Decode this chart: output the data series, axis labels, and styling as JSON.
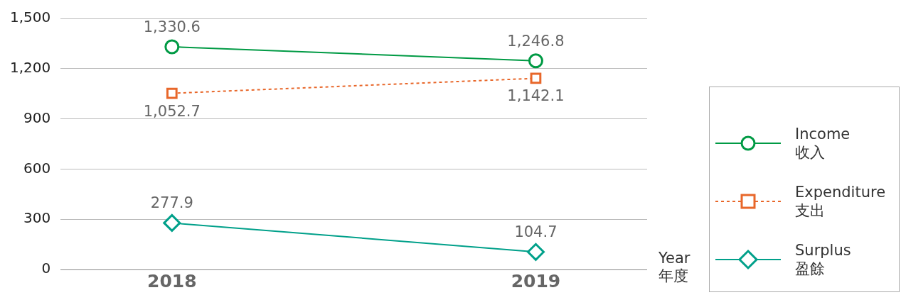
{
  "chart_data": {
    "type": "line",
    "categories": [
      "2018",
      "2019"
    ],
    "xlabel": "Year\n年度",
    "series": [
      {
        "name": "Income\n收入",
        "color": "#009a44",
        "values": [
          1330.6,
          1246.8
        ],
        "value_labels": [
          "1,330.6",
          "1,246.8"
        ],
        "marker": "circle",
        "line_style": "solid"
      },
      {
        "name": "Expenditure\n支出",
        "color": "#e8672a",
        "values": [
          1052.7,
          1142.1
        ],
        "value_labels": [
          "1,052.7",
          "1,142.1"
        ],
        "marker": "square",
        "line_style": "dotted"
      },
      {
        "name": "Surplus\n盈餘",
        "color": "#00a08a",
        "values": [
          277.9,
          104.7
        ],
        "value_labels": [
          "277.9",
          "104.7"
        ],
        "marker": "diamond",
        "line_style": "solid"
      }
    ],
    "ylim": [
      0,
      1500
    ],
    "yticks": [
      0,
      300,
      600,
      900,
      {
        "value": 1200,
        "label": "1,200"
      },
      {
        "value": 1500,
        "label": "1,500"
      }
    ],
    "grid": "y",
    "legend": "right"
  }
}
